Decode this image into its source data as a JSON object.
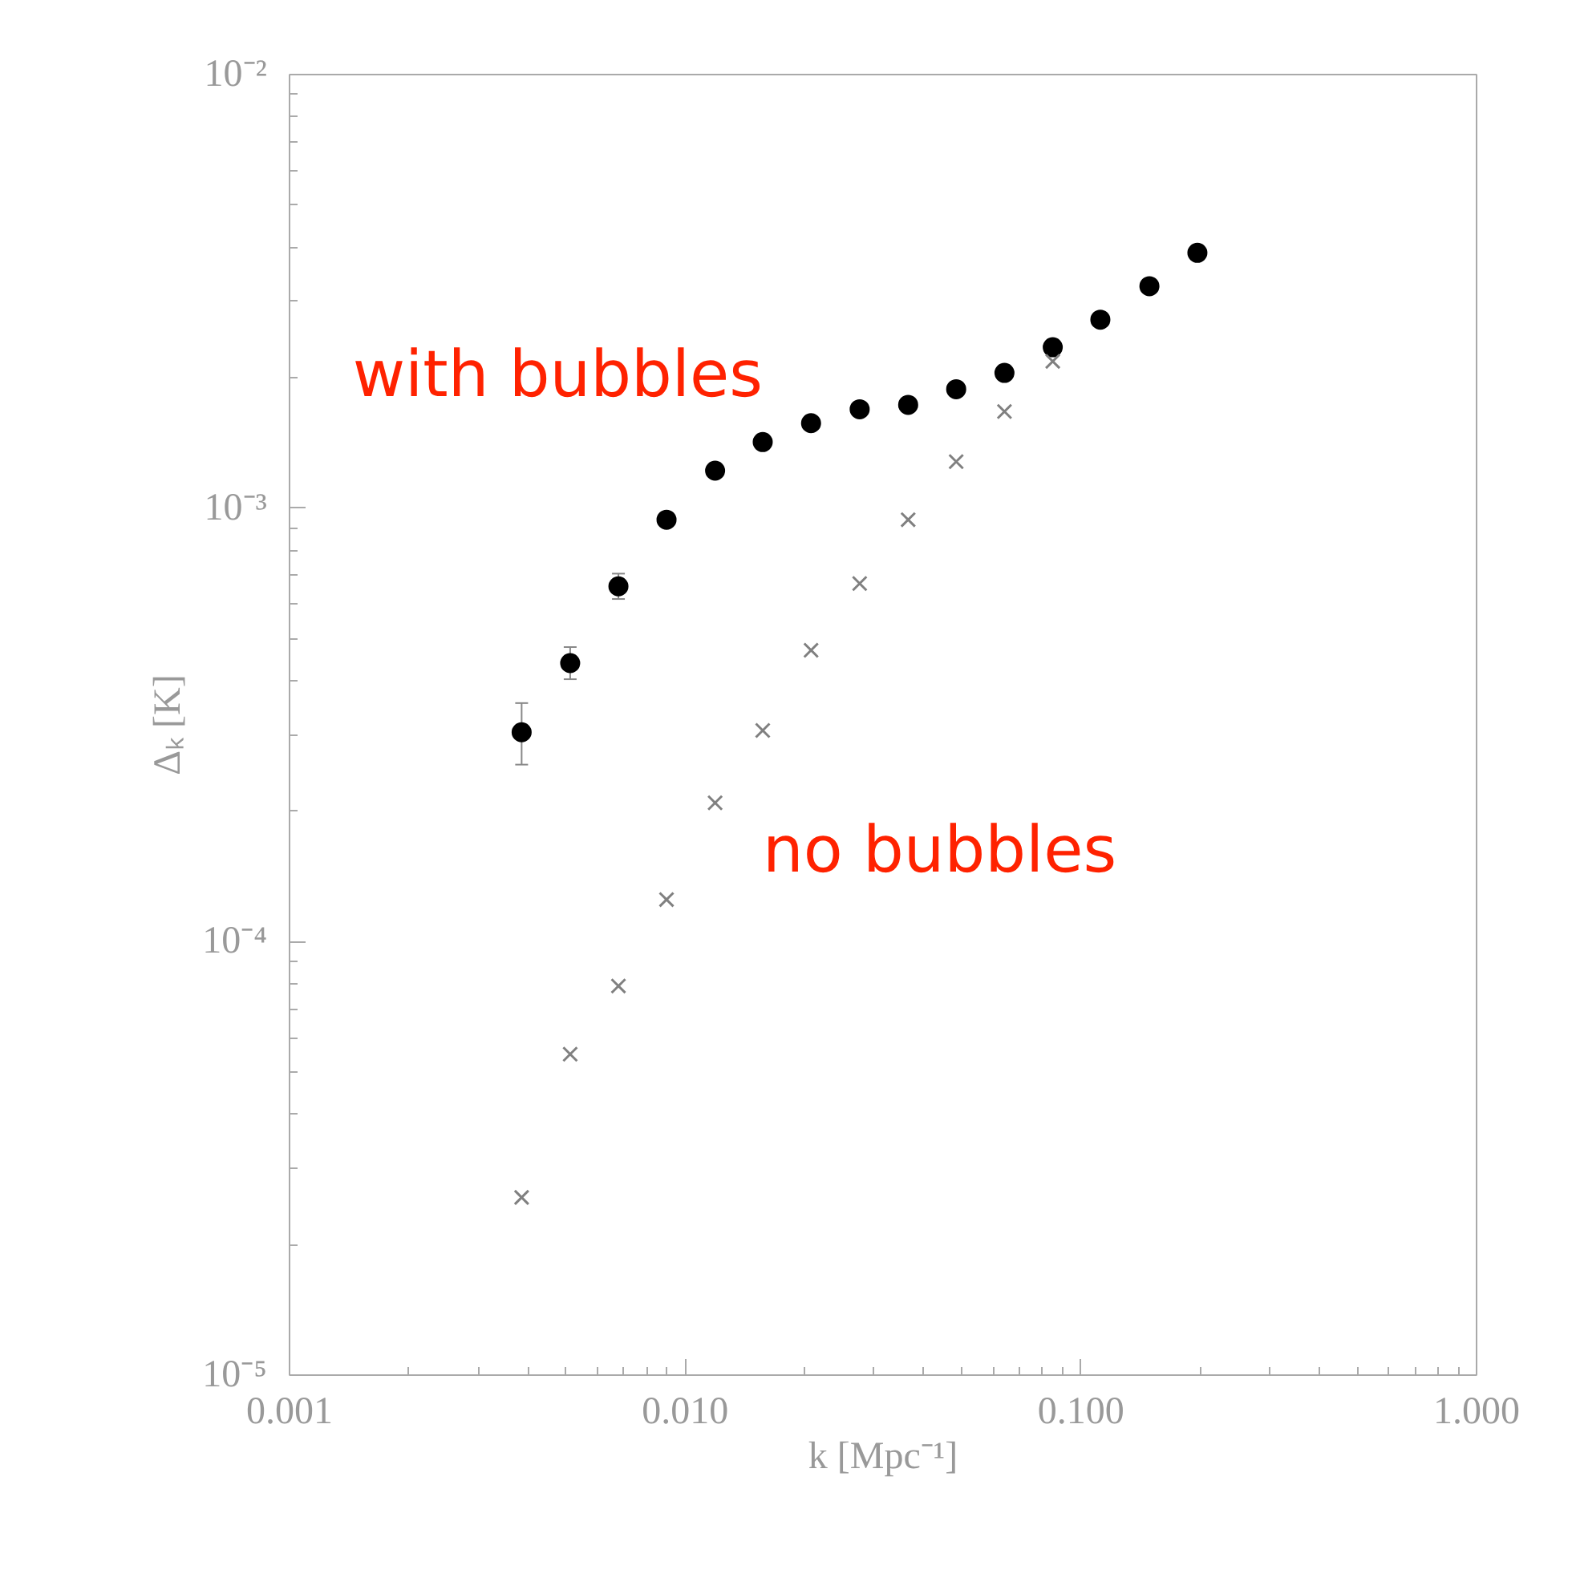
{
  "chart_data": {
    "type": "scatter",
    "xlabel": "k [Mpc⁻¹]",
    "ylabel": "Δₖ [K]",
    "log": "xy",
    "grid": false,
    "x": [
      0.00386,
      0.00512,
      0.00678,
      0.00897,
      0.0119,
      0.0157,
      0.0208,
      0.0276,
      0.0366,
      0.0484,
      0.0641,
      0.0849,
      0.112,
      0.149,
      0.197
    ],
    "xlim": [
      0.001,
      1.0
    ],
    "xticks": [
      {
        "value": 0.001,
        "label": "0.001"
      },
      {
        "value": 0.01,
        "label": "0.010"
      },
      {
        "value": 0.1,
        "label": "0.100"
      },
      {
        "value": 1.0,
        "label": "1.000"
      }
    ],
    "ylim": [
      1e-05,
      0.01
    ],
    "yticks": [
      {
        "value": 1e-05,
        "label": "10⁻⁵"
      },
      {
        "value": 0.0001,
        "label": "10⁻⁴"
      },
      {
        "value": 0.001,
        "label": "10⁻³"
      },
      {
        "value": 0.01,
        "label": "10⁻²"
      }
    ],
    "series": [
      {
        "name": "with bubbles",
        "color": "#000000",
        "marker": "circle",
        "values": [
          0.000304,
          0.000439,
          0.00066,
          0.00094,
          0.00122,
          0.00142,
          0.00157,
          0.00169,
          0.00173,
          0.00188,
          0.00205,
          0.00235,
          0.00272,
          0.00325,
          0.00388
        ],
        "errors": [
          [
            0.000256,
            0.000355
          ],
          [
            0.000403,
            0.000478
          ],
          [
            0.000617,
            0.000706
          ],
          null,
          null,
          null,
          null,
          null,
          null,
          null,
          null,
          null,
          null,
          null,
          null
        ]
      },
      {
        "name": "no bubbles",
        "color": "#808080",
        "marker": "cross",
        "values": [
          2.57e-05,
          5.5e-05,
          7.9e-05,
          0.000125,
          0.000209,
          0.000307,
          0.00047,
          0.00067,
          0.00094,
          0.00128,
          0.00167,
          0.00218,
          null,
          null,
          null
        ]
      }
    ]
  }
}
